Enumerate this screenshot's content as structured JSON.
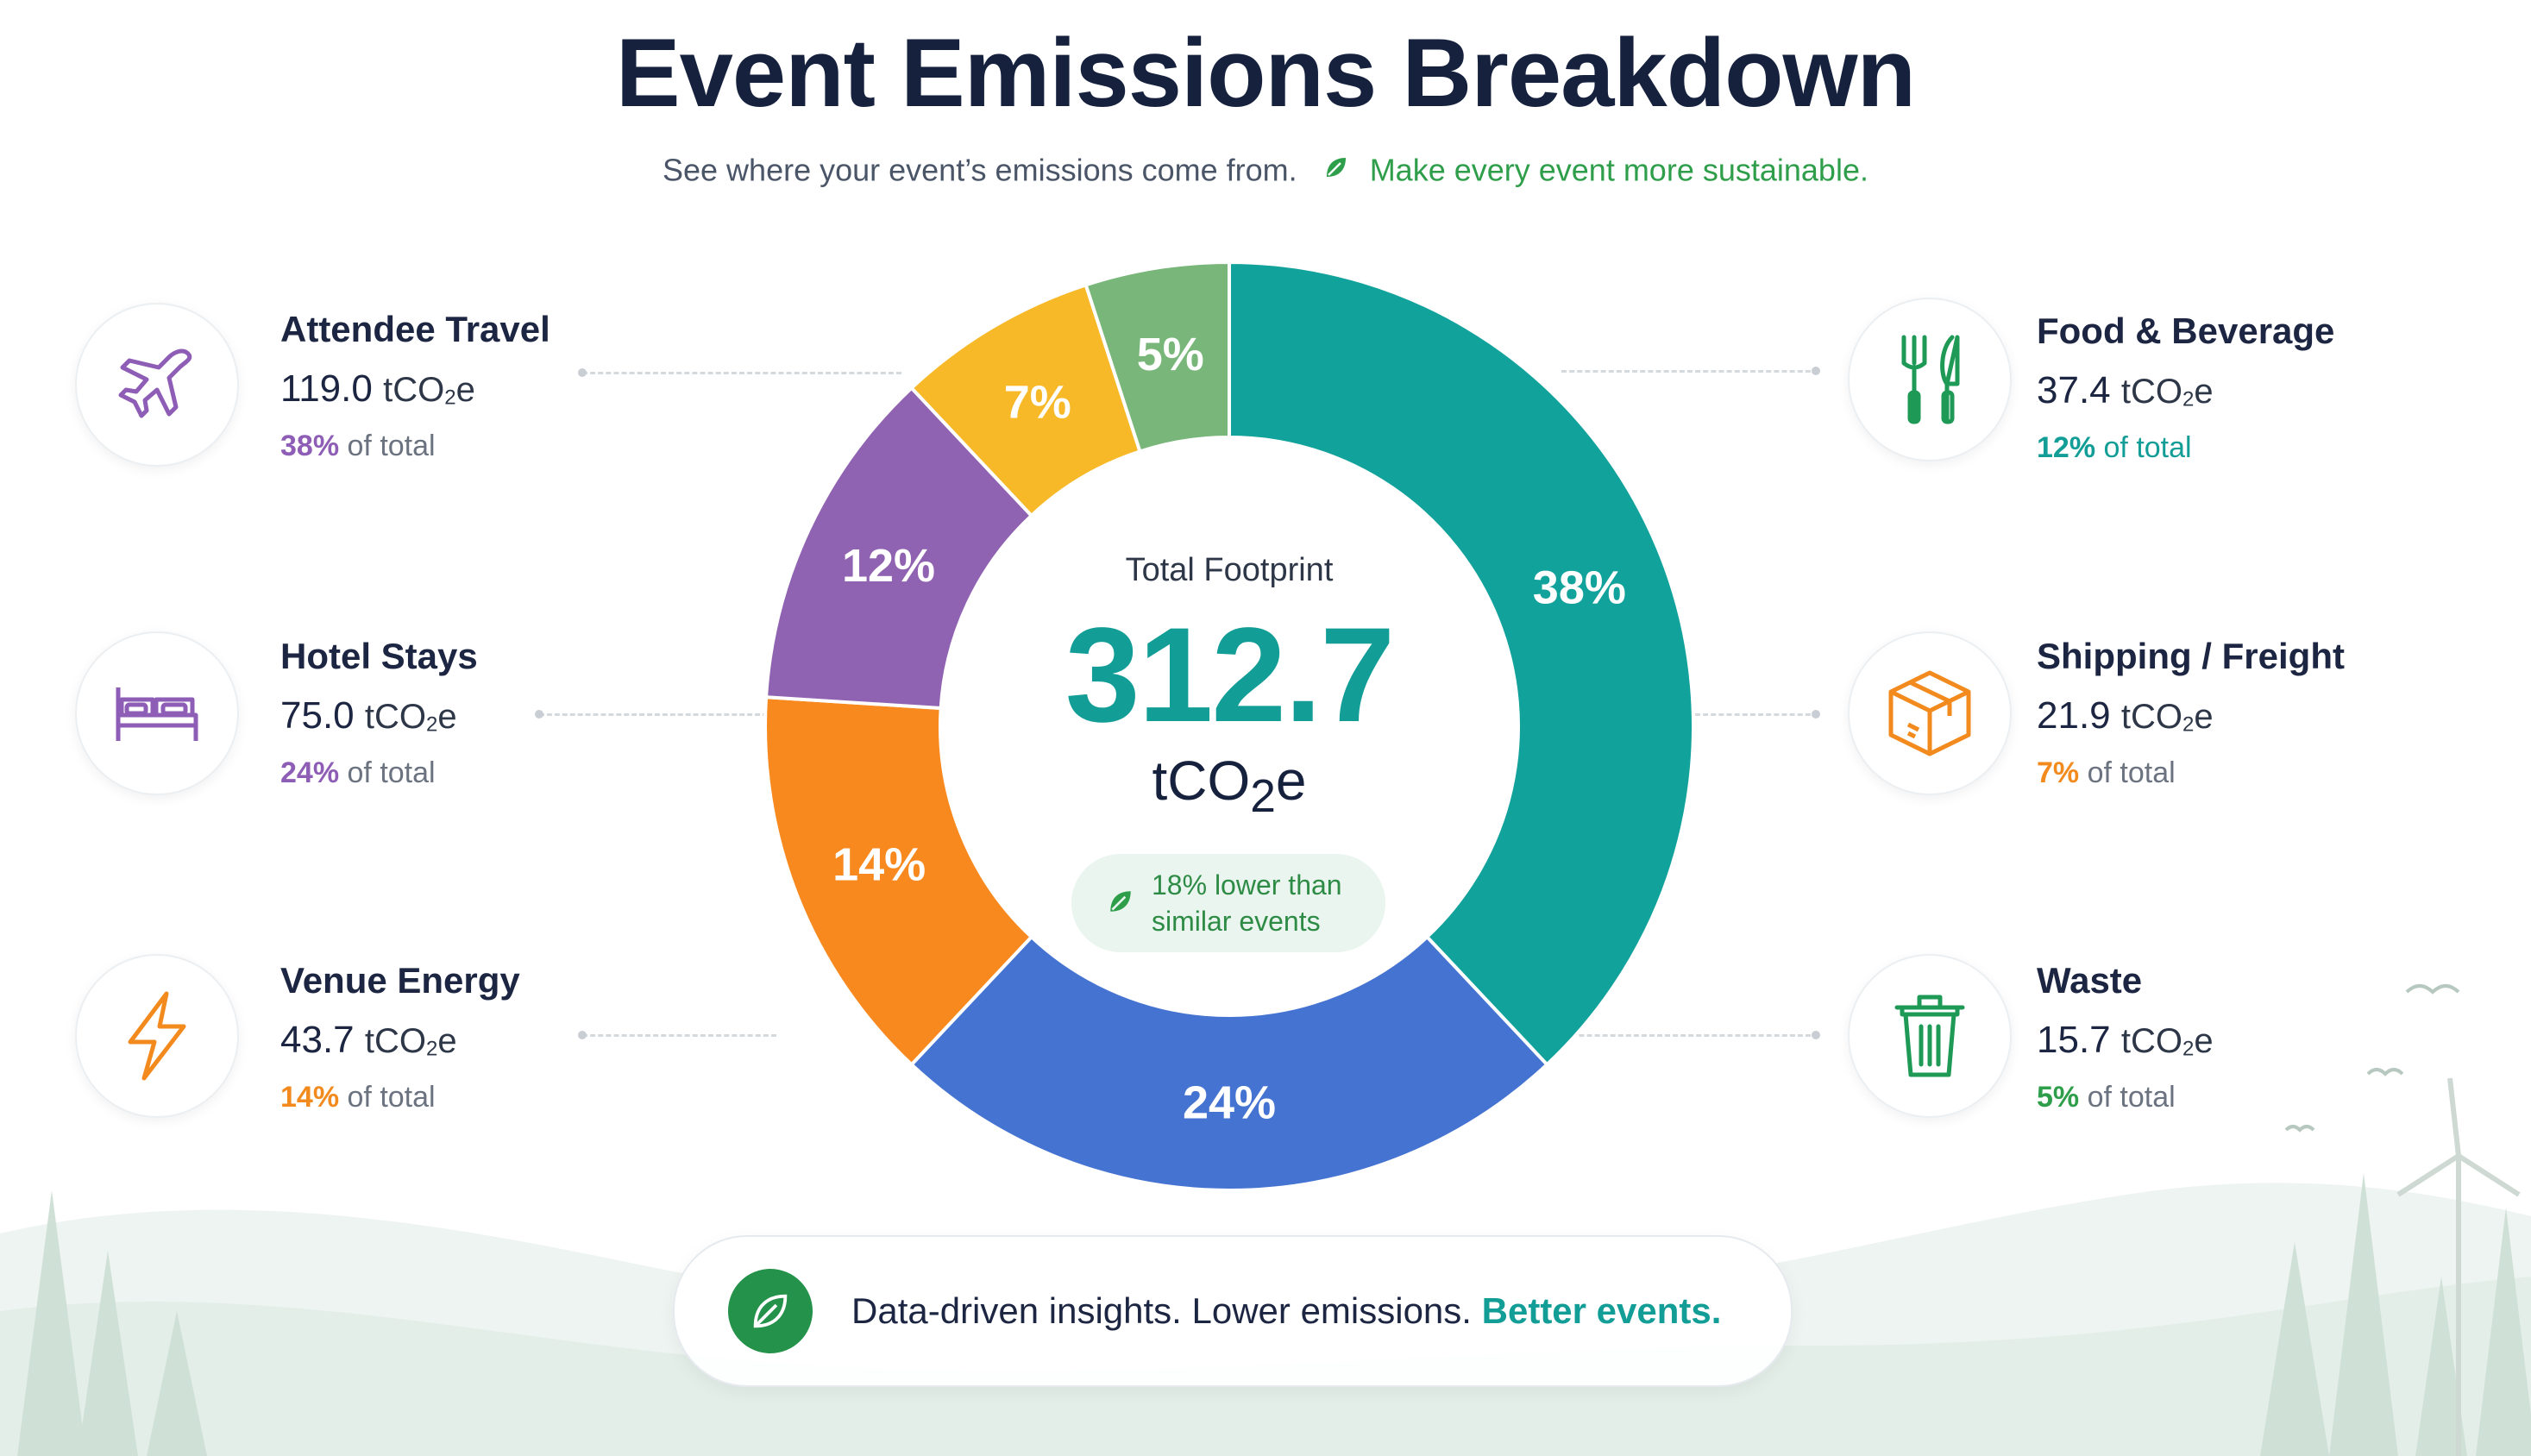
{
  "header": {
    "title": "Event Emissions Breakdown",
    "subtitle_left": "See where your event’s emissions come from.",
    "subtitle_right": "Make every event more sustainable."
  },
  "center": {
    "label": "Total Footprint",
    "total": "312.7",
    "unit_prefix": "tCO",
    "unit_sub": "2",
    "unit_suffix": "e",
    "comparison": "18% lower than similar events"
  },
  "categories": {
    "attendee_travel": {
      "name": "Attendee Travel",
      "value": "119.0",
      "pct": "38%",
      "pct_suffix": "of total",
      "icon": "plane-icon",
      "color": "#8e5db6"
    },
    "hotel_stays": {
      "name": "Hotel Stays",
      "value": "75.0",
      "pct": "24%",
      "pct_suffix": "of total",
      "icon": "bed-icon",
      "color": "#8e5db6"
    },
    "venue_energy": {
      "name": "Venue Energy",
      "value": "43.7",
      "pct": "14%",
      "pct_suffix": "of total",
      "icon": "lightning-icon",
      "color": "#f28a1e"
    },
    "food_beverage": {
      "name": "Food & Beverage",
      "value": "37.4",
      "pct": "12%",
      "pct_suffix": "of total",
      "icon": "fork-knife-icon",
      "color": "#129d97"
    },
    "shipping_freight": {
      "name": "Shipping / Freight",
      "value": "21.9",
      "pct": "7%",
      "pct_suffix": "of total",
      "icon": "box-icon",
      "color": "#f28a1e"
    },
    "waste": {
      "name": "Waste",
      "value": "15.7",
      "pct": "5%",
      "pct_suffix": "of total",
      "icon": "trash-icon",
      "color": "#2e9e4a"
    }
  },
  "footer": {
    "text": "Data-driven insights. Lower emissions.",
    "accent": "Better events.",
    "icon": "leaf-icon"
  },
  "chart_data": {
    "type": "pie",
    "donut": true,
    "title": "Event Emissions Breakdown",
    "unit": "tCO2e",
    "total": 312.7,
    "segments": [
      {
        "label": "38%",
        "value": 38,
        "color": "#12a29c"
      },
      {
        "label": "24%",
        "value": 24,
        "color": "#4573d1"
      },
      {
        "label": "14%",
        "value": 14,
        "color": "#f8891f"
      },
      {
        "label": "12%",
        "value": 12,
        "color": "#9063b2"
      },
      {
        "label": "7%",
        "value": 7,
        "color": "#f7b928"
      },
      {
        "label": "5%",
        "value": 5,
        "color": "#79b67a"
      }
    ]
  }
}
